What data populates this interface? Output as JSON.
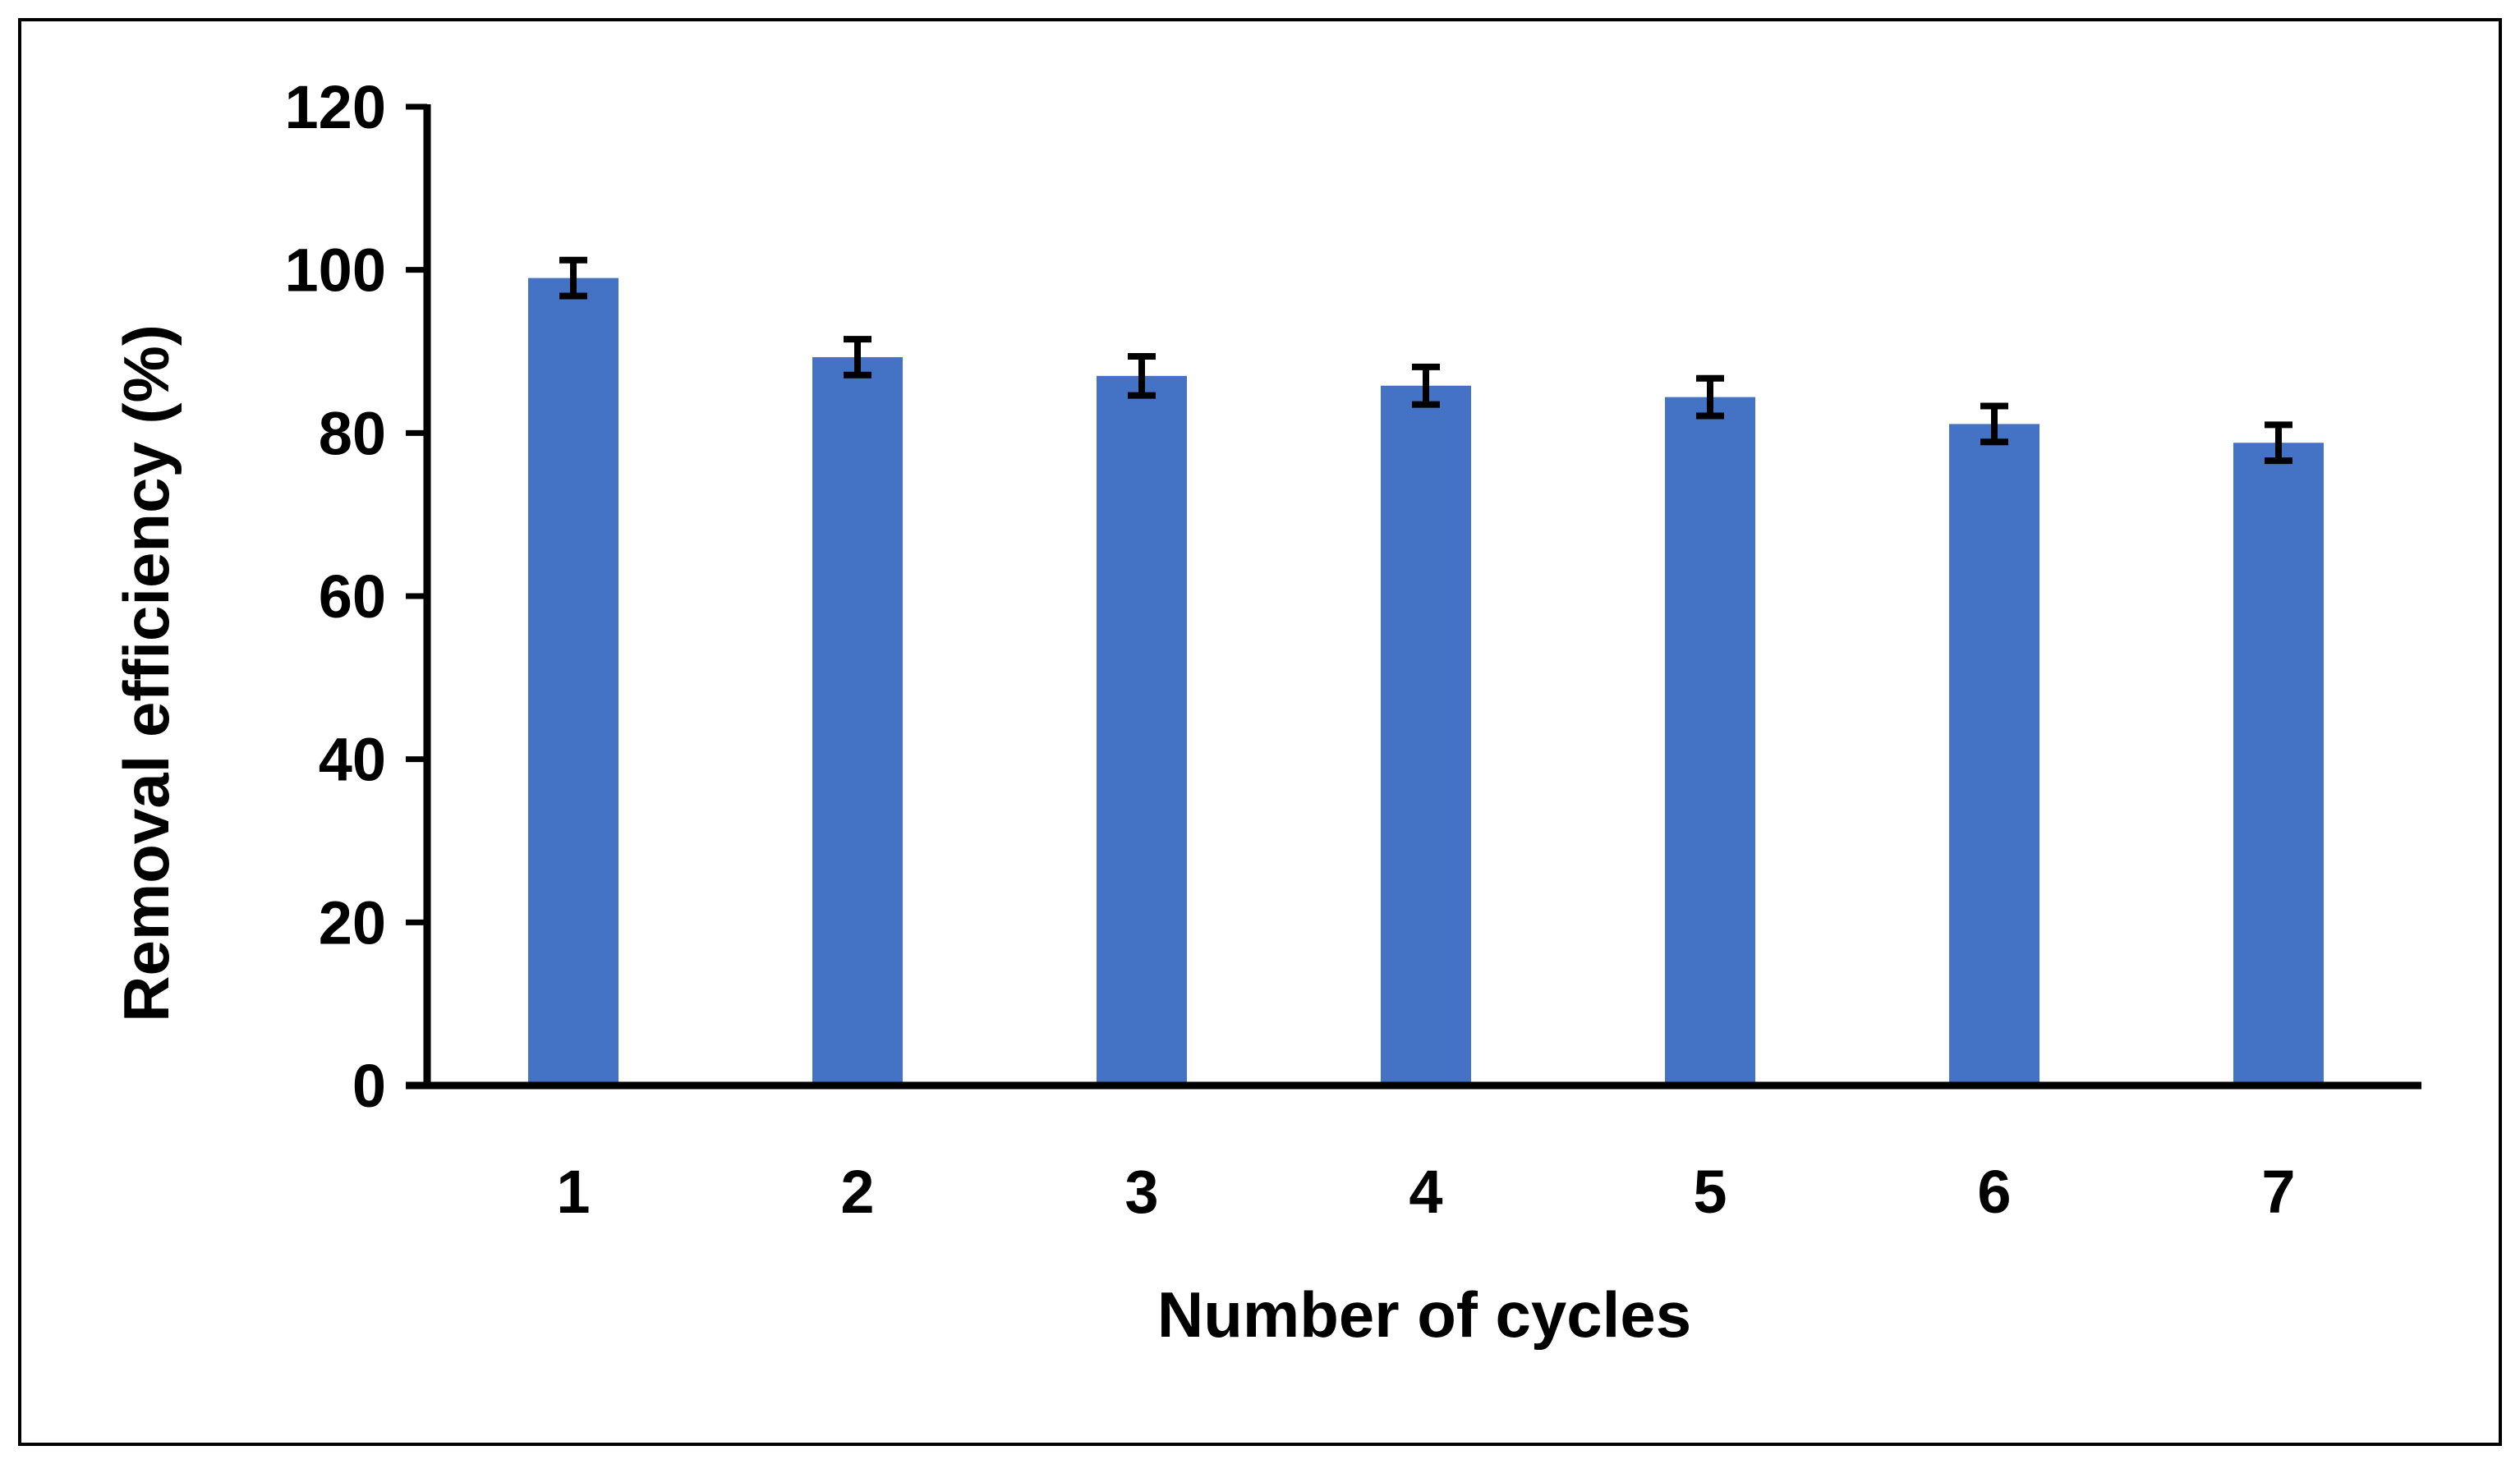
{
  "chart_data": {
    "type": "bar",
    "title": "",
    "xlabel": "Number of cycles",
    "ylabel": "Removal efficiency (%)",
    "categories": [
      "1",
      "2",
      "3",
      "4",
      "5",
      "6",
      "7"
    ],
    "values": [
      99,
      89.3,
      87,
      85.8,
      84.4,
      81.1,
      78.8
    ],
    "error": [
      2.2,
      2.2,
      2.4,
      2.3,
      2.3,
      2.2,
      2.2
    ],
    "ylim": [
      0,
      120
    ],
    "yticks": [
      "0",
      "20",
      "40",
      "60",
      "80",
      "100",
      "120"
    ],
    "grid": false,
    "legend": "none",
    "colors": {
      "bar": "#4472C4",
      "axis": "#000000",
      "error_bar": "#000000",
      "frame": "#000000"
    }
  }
}
